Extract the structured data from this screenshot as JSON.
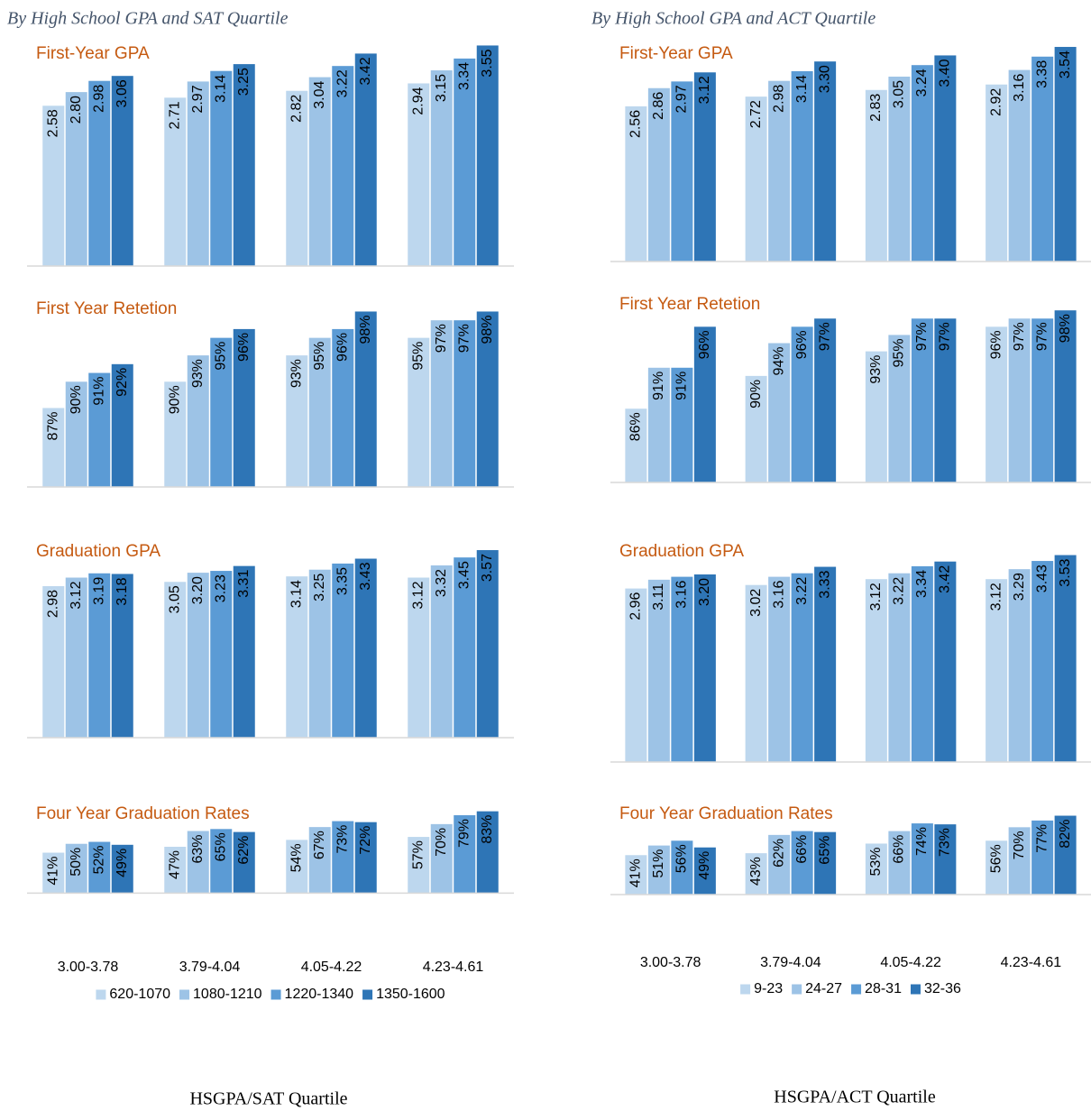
{
  "columns": [
    {
      "heading": "By High School GPA and SAT Quartile",
      "footer": "HSGPA/SAT Quartile"
    },
    {
      "heading": "By High School GPA and ACT Quartile",
      "footer": "HSGPA/ACT Quartile"
    }
  ],
  "chart_data": [
    {
      "type": "bar",
      "title": "First-Year GPA",
      "ylim": [
        0,
        3.6
      ],
      "series": [
        {
          "color": "#bdd7ee",
          "values": [
            2.58,
            2.71,
            2.82,
            2.94
          ],
          "value_labels": [
            "2.58",
            "2.71",
            "2.82",
            "2.94"
          ]
        },
        {
          "color": "#9dc3e6",
          "values": [
            2.8,
            2.97,
            3.04,
            3.15
          ],
          "value_labels": [
            "2.80",
            "2.97",
            "3.04",
            "3.15"
          ]
        },
        {
          "color": "#5b9bd5",
          "values": [
            2.98,
            3.14,
            3.22,
            3.34
          ],
          "value_labels": [
            "2.98",
            "3.14",
            "3.22",
            "3.34"
          ]
        },
        {
          "color": "#2e75b6",
          "values": [
            3.06,
            3.25,
            3.42,
            3.55
          ],
          "value_labels": [
            "3.06",
            "3.25",
            "3.42",
            "3.55"
          ]
        }
      ]
    },
    {
      "type": "bar",
      "title": "First Year Retetion",
      "ylim": [
        78,
        100
      ],
      "series": [
        {
          "color": "#bdd7ee",
          "values": [
            87,
            90,
            93,
            95
          ],
          "value_labels": [
            "87%",
            "90%",
            "93%",
            "95%"
          ]
        },
        {
          "color": "#9dc3e6",
          "values": [
            90,
            93,
            95,
            97
          ],
          "value_labels": [
            "90%",
            "93%",
            "95%",
            "97%"
          ]
        },
        {
          "color": "#5b9bd5",
          "values": [
            91,
            95,
            96,
            97
          ],
          "value_labels": [
            "91%",
            "95%",
            "96%",
            "97%"
          ]
        },
        {
          "color": "#2e75b6",
          "values": [
            92,
            96,
            98,
            98
          ],
          "value_labels": [
            "92%",
            "96%",
            "98%",
            "98%"
          ]
        }
      ]
    },
    {
      "type": "bar",
      "title": "Graduation GPA",
      "ylim": [
        0.5,
        3.6
      ],
      "series": [
        {
          "color": "#bdd7ee",
          "values": [
            2.98,
            3.05,
            3.14,
            3.12
          ],
          "value_labels": [
            "2.98",
            "3.05",
            "3.14",
            "3.12"
          ]
        },
        {
          "color": "#9dc3e6",
          "values": [
            3.12,
            3.2,
            3.25,
            3.32
          ],
          "value_labels": [
            "3.12",
            "3.20",
            "3.25",
            "3.32"
          ]
        },
        {
          "color": "#5b9bd5",
          "values": [
            3.19,
            3.23,
            3.35,
            3.45
          ],
          "value_labels": [
            "3.19",
            "3.23",
            "3.35",
            "3.45"
          ]
        },
        {
          "color": "#2e75b6",
          "values": [
            3.18,
            3.31,
            3.43,
            3.57
          ],
          "value_labels": [
            "3.18",
            "3.31",
            "3.43",
            "3.57"
          ]
        }
      ]
    },
    {
      "type": "bar",
      "title": "Four Year Graduation Rates",
      "ylim": [
        -50,
        90
      ],
      "categories": [
        "3.00-3.78",
        "3.79-4.04",
        "4.05-4.22",
        "4.23-4.61"
      ],
      "series": [
        {
          "name": "620-1070",
          "color": "#bdd7ee",
          "values": [
            41,
            47,
            54,
            57
          ],
          "value_labels": [
            "41%",
            "47%",
            "54%",
            "57%"
          ]
        },
        {
          "name": "1080-1210",
          "color": "#9dc3e6",
          "values": [
            50,
            63,
            67,
            70
          ],
          "value_labels": [
            "50%",
            "63%",
            "67%",
            "70%"
          ]
        },
        {
          "name": "1220-1340",
          "color": "#5b9bd5",
          "values": [
            52,
            65,
            73,
            79
          ],
          "value_labels": [
            "52%",
            "65%",
            "73%",
            "79%"
          ]
        },
        {
          "name": "1350-1600",
          "color": "#2e75b6",
          "values": [
            49,
            62,
            72,
            83
          ],
          "value_labels": [
            "49%",
            "62%",
            "72%",
            "83%"
          ]
        }
      ]
    },
    {
      "type": "bar",
      "title": "First-Year GPA",
      "ylim": [
        0,
        3.6
      ],
      "series": [
        {
          "color": "#bdd7ee",
          "values": [
            2.56,
            2.72,
            2.83,
            2.92
          ],
          "value_labels": [
            "2.56",
            "2.72",
            "2.83",
            "2.92"
          ]
        },
        {
          "color": "#9dc3e6",
          "values": [
            2.86,
            2.98,
            3.05,
            3.16
          ],
          "value_labels": [
            "2.86",
            "2.98",
            "3.05",
            "3.16"
          ]
        },
        {
          "color": "#5b9bd5",
          "values": [
            2.97,
            3.14,
            3.24,
            3.38
          ],
          "value_labels": [
            "2.97",
            "3.14",
            "3.24",
            "3.38"
          ]
        },
        {
          "color": "#2e75b6",
          "values": [
            3.12,
            3.3,
            3.4,
            3.54
          ],
          "value_labels": [
            "3.12",
            "3.30",
            "3.40",
            "3.54"
          ]
        }
      ]
    },
    {
      "type": "bar",
      "title": "First Year Retetion",
      "ylim": [
        77,
        100
      ],
      "series": [
        {
          "color": "#bdd7ee",
          "values": [
            86,
            90,
            93,
            96
          ],
          "value_labels": [
            "86%",
            "90%",
            "93%",
            "96%"
          ]
        },
        {
          "color": "#9dc3e6",
          "values": [
            91,
            94,
            95,
            97
          ],
          "value_labels": [
            "91%",
            "94%",
            "95%",
            "97%"
          ]
        },
        {
          "color": "#5b9bd5",
          "values": [
            91,
            96,
            97,
            97
          ],
          "value_labels": [
            "91%",
            "96%",
            "97%",
            "97%"
          ]
        },
        {
          "color": "#2e75b6",
          "values": [
            96,
            97,
            97,
            98
          ],
          "value_labels": [
            "96%",
            "97%",
            "97%",
            "98%"
          ]
        }
      ]
    },
    {
      "type": "bar",
      "title": "Graduation GPA",
      "ylim": [
        0,
        3.6
      ],
      "series": [
        {
          "color": "#bdd7ee",
          "values": [
            2.96,
            3.02,
            3.12,
            3.12
          ],
          "value_labels": [
            "2.96",
            "3.02",
            "3.12",
            "3.12"
          ]
        },
        {
          "color": "#9dc3e6",
          "values": [
            3.11,
            3.16,
            3.22,
            3.29
          ],
          "value_labels": [
            "3.11",
            "3.16",
            "3.22",
            "3.29"
          ]
        },
        {
          "color": "#5b9bd5",
          "values": [
            3.16,
            3.22,
            3.34,
            3.43
          ],
          "value_labels": [
            "3.16",
            "3.22",
            "3.34",
            "3.43"
          ]
        },
        {
          "color": "#2e75b6",
          "values": [
            3.2,
            3.33,
            3.42,
            3.53
          ],
          "value_labels": [
            "3.20",
            "3.33",
            "3.42",
            "3.53"
          ]
        }
      ]
    },
    {
      "type": "bar",
      "title": "Four Year Graduation Rates",
      "ylim": [
        -45,
        90
      ],
      "categories": [
        "3.00-3.78",
        "3.79-4.04",
        "4.05-4.22",
        "4.23-4.61"
      ],
      "series": [
        {
          "name": "9-23",
          "color": "#bdd7ee",
          "values": [
            41,
            43,
            53,
            56
          ],
          "value_labels": [
            "41%",
            "43%",
            "53%",
            "56%"
          ]
        },
        {
          "name": "24-27",
          "color": "#9dc3e6",
          "values": [
            51,
            62,
            66,
            70
          ],
          "value_labels": [
            "51%",
            "62%",
            "66%",
            "70%"
          ]
        },
        {
          "name": "28-31",
          "color": "#5b9bd5",
          "values": [
            56,
            66,
            74,
            77
          ],
          "value_labels": [
            "56%",
            "66%",
            "74%",
            "77%"
          ]
        },
        {
          "name": "32-36",
          "color": "#2e75b6",
          "values": [
            49,
            65,
            73,
            82
          ],
          "value_labels": [
            "49%",
            "65%",
            "73%",
            "82%"
          ]
        }
      ]
    }
  ]
}
